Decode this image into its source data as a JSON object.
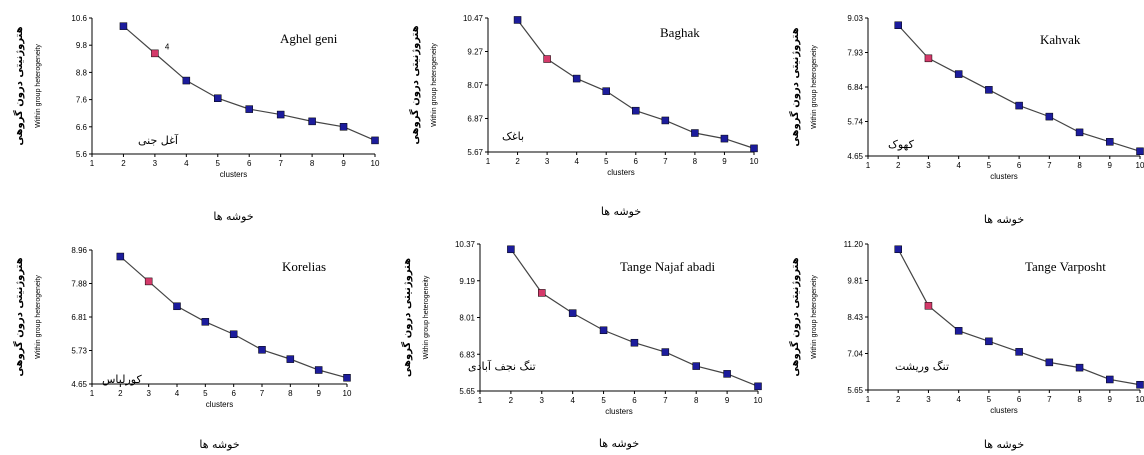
{
  "common": {
    "ylabel_fa": "هتروژنیتی درون گروهی",
    "ylabel_en": "Within group heterogeneity",
    "xlabel_en": "clusters",
    "xlabel_fa": "خوشه ها",
    "marker_color": "#1c1c9c",
    "highlight_color": "#d43a6a",
    "line_color": "#444444"
  },
  "chart_data": [
    {
      "type": "line",
      "title": "Aghel geni",
      "name_fa": "آغل جنی",
      "xlabel": "clusters",
      "ylabel": "Within group heterogeneity",
      "x_ticks": [
        "1",
        "2",
        "3",
        "4",
        "5",
        "6",
        "7",
        "8",
        "9",
        "10"
      ],
      "y_ticks": [
        "10.6",
        "9.8",
        "8.8",
        "7.6",
        "6.6",
        "5.6"
      ],
      "xlim": [
        1,
        10
      ],
      "ylim": [
        5.6,
        10.6
      ],
      "x": [
        2,
        3,
        4,
        5,
        6,
        7,
        8,
        9,
        10
      ],
      "values": [
        10.3,
        9.3,
        8.3,
        7.65,
        7.25,
        7.05,
        6.8,
        6.6,
        6.1
      ],
      "highlight_x": 3,
      "annotation": "4"
    },
    {
      "type": "line",
      "title": "Baghak",
      "name_fa": "باغک",
      "xlabel": "clusters",
      "ylabel": "Within group heterogeneity",
      "x_ticks": [
        "1",
        "2",
        "3",
        "4",
        "5",
        "6",
        "7",
        "8",
        "9",
        "10"
      ],
      "y_ticks": [
        "10.47",
        "9.27",
        "8.07",
        "6.87",
        "5.67"
      ],
      "xlim": [
        1,
        10
      ],
      "ylim": [
        5.67,
        10.47
      ],
      "x": [
        2,
        3,
        4,
        5,
        6,
        7,
        8,
        9,
        10
      ],
      "values": [
        10.4,
        9.0,
        8.3,
        7.85,
        7.15,
        6.8,
        6.35,
        6.15,
        5.8
      ],
      "highlight_x": 3
    },
    {
      "type": "line",
      "title": "Kahvak",
      "name_fa": "کهوک",
      "xlabel": "clusters",
      "ylabel": "Within group heterogeneity",
      "x_ticks": [
        "1",
        "2",
        "3",
        "4",
        "5",
        "6",
        "7",
        "8",
        "9",
        "10"
      ],
      "y_ticks": [
        "9.03",
        "7.93",
        "6.84",
        "5.74",
        "4.65"
      ],
      "xlim": [
        1,
        10
      ],
      "ylim": [
        4.65,
        9.03
      ],
      "x": [
        2,
        3,
        4,
        5,
        6,
        7,
        8,
        9,
        10
      ],
      "values": [
        8.8,
        7.75,
        7.25,
        6.75,
        6.25,
        5.9,
        5.4,
        5.1,
        4.8
      ],
      "highlight_x": 3
    },
    {
      "type": "line",
      "title": "Korelias",
      "name_fa": "کورلیاس",
      "xlabel": "clusters",
      "ylabel": "Within group heterogeneity",
      "x_ticks": [
        "1",
        "2",
        "3",
        "4",
        "5",
        "6",
        "7",
        "8",
        "9",
        "10"
      ],
      "y_ticks": [
        "8.96",
        "7.88",
        "6.81",
        "5.73",
        "4.65"
      ],
      "xlim": [
        1,
        10
      ],
      "ylim": [
        4.65,
        8.96
      ],
      "x": [
        2,
        3,
        4,
        5,
        6,
        7,
        8,
        9,
        10
      ],
      "values": [
        8.75,
        7.95,
        7.15,
        6.65,
        6.25,
        5.75,
        5.45,
        5.1,
        4.85
      ],
      "highlight_x": 3
    },
    {
      "type": "line",
      "title": "Tange Najaf abadi",
      "name_fa": "تنگ نجف آبادی",
      "xlabel": "clusters",
      "ylabel": "Within group heterogeneity",
      "x_ticks": [
        "1",
        "2",
        "3",
        "4",
        "5",
        "6",
        "7",
        "8",
        "9",
        "10"
      ],
      "y_ticks": [
        "10.37",
        "9.19",
        "8.01",
        "6.83",
        "5.65"
      ],
      "xlim": [
        1,
        10
      ],
      "ylim": [
        5.65,
        10.37
      ],
      "x": [
        2,
        3,
        4,
        5,
        6,
        7,
        8,
        9,
        10
      ],
      "values": [
        10.2,
        8.8,
        8.15,
        7.6,
        7.2,
        6.9,
        6.45,
        6.2,
        5.8
      ],
      "highlight_x": 3
    },
    {
      "type": "line",
      "title": "Tange Varposht",
      "name_fa": "تنگ وریشت",
      "xlabel": "clusters",
      "ylabel": "Within group heterogeneity",
      "x_ticks": [
        "1",
        "2",
        "3",
        "4",
        "5",
        "6",
        "7",
        "8",
        "9",
        "10"
      ],
      "y_ticks": [
        "11.20",
        "9.81",
        "8.43",
        "7.04",
        "5.65"
      ],
      "xlim": [
        1,
        10
      ],
      "ylim": [
        5.65,
        11.2
      ],
      "x": [
        2,
        3,
        4,
        5,
        6,
        7,
        8,
        9,
        10
      ],
      "values": [
        11.0,
        8.85,
        7.9,
        7.5,
        7.1,
        6.7,
        6.5,
        6.05,
        5.85
      ],
      "highlight_x": 3
    }
  ]
}
